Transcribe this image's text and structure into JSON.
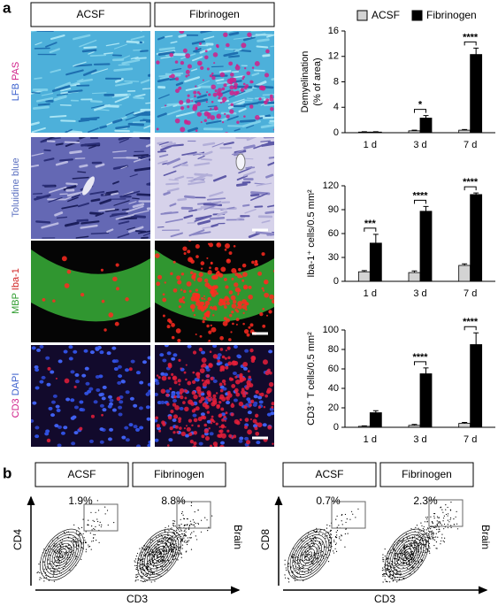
{
  "panel_a": {
    "label": "a",
    "columns": [
      "ACSF",
      "Fibrinogen"
    ],
    "rows": [
      [
        "LFB",
        "PAS"
      ],
      [
        "Toluidine blue"
      ],
      [
        "MBP",
        "Iba-1"
      ],
      [
        "CD3",
        "DAPI"
      ]
    ]
  },
  "chart_data": [
    {
      "type": "bar",
      "ylabel": [
        "Demyelination",
        "(% of area)"
      ],
      "categories": [
        "1 d",
        "3 d",
        "7 d"
      ],
      "series": [
        {
          "name": "ACSF",
          "color": "#d3d3d3",
          "values": [
            0.1,
            0.3,
            0.4
          ],
          "errors": [
            0.05,
            0.1,
            0.1
          ]
        },
        {
          "name": "Fibrinogen",
          "color": "#000000",
          "values": [
            0.1,
            2.3,
            12.3
          ],
          "errors": [
            0.05,
            0.4,
            1.0
          ]
        }
      ],
      "annotations": [
        null,
        "*",
        "****"
      ],
      "ylim": [
        0,
        16
      ],
      "yticks": [
        0,
        4,
        8,
        12,
        16
      ],
      "legend": true
    },
    {
      "type": "bar",
      "ylabel": [
        "Iba-1⁺ cells/0.5 mm²"
      ],
      "categories": [
        "1 d",
        "3 d",
        "7 d"
      ],
      "series": [
        {
          "name": "ACSF",
          "color": "#d3d3d3",
          "values": [
            12,
            11,
            20
          ],
          "errors": [
            1.5,
            2,
            2
          ]
        },
        {
          "name": "Fibrinogen",
          "color": "#000000",
          "values": [
            48,
            88,
            109
          ],
          "errors": [
            11,
            6,
            2
          ]
        }
      ],
      "annotations": [
        "***",
        "****",
        "****"
      ],
      "ylim": [
        0,
        120
      ],
      "yticks": [
        0,
        30,
        60,
        90,
        120
      ],
      "legend": false
    },
    {
      "type": "bar",
      "ylabel": [
        "CD3⁺ T cells/0.5 mm²"
      ],
      "categories": [
        "1 d",
        "3 d",
        "7 d"
      ],
      "series": [
        {
          "name": "ACSF",
          "color": "#d3d3d3",
          "values": [
            1,
            2,
            4
          ],
          "errors": [
            0.5,
            1,
            1
          ]
        },
        {
          "name": "Fibrinogen",
          "color": "#000000",
          "values": [
            15,
            55,
            85
          ],
          "errors": [
            2,
            6,
            12
          ]
        }
      ],
      "annotations": [
        null,
        "****",
        "****"
      ],
      "ylim": [
        0,
        100
      ],
      "yticks": [
        0,
        20,
        40,
        60,
        80,
        100
      ],
      "legend": false
    }
  ],
  "panel_b": {
    "label": "b",
    "x_label": "CD3",
    "side_label": "Brain",
    "y_labels": [
      "CD4",
      "CD8"
    ],
    "plots": [
      {
        "header": "ACSF",
        "percent": "1.9%"
      },
      {
        "header": "Fibrinogen",
        "percent": "8.8%"
      },
      {
        "header": "ACSF",
        "percent": "0.7%"
      },
      {
        "header": "Fibrinogen",
        "percent": "2.3%"
      }
    ]
  }
}
